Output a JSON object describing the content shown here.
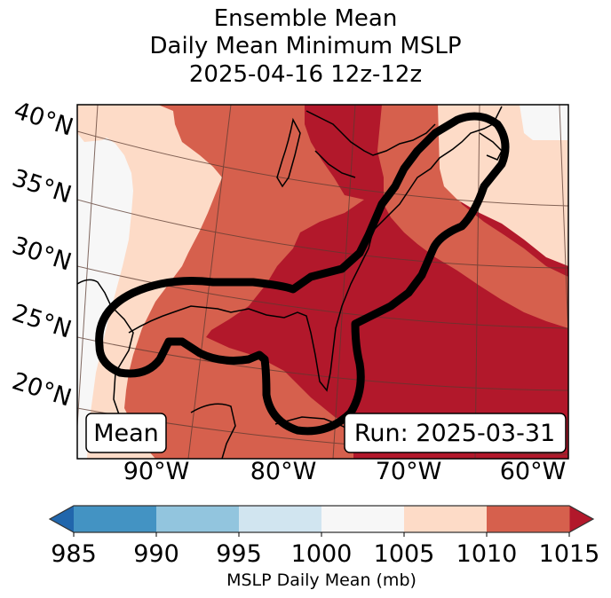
{
  "title": {
    "line1": "Ensemble Mean",
    "line2": "Daily Mean Minimum MSLP",
    "line3": "2025-04-16 12z-12z"
  },
  "map": {
    "latitude_labels": [
      "40°N",
      "35°N",
      "30°N",
      "25°N",
      "20°N"
    ],
    "longitude_labels": [
      "90°W",
      "80°W",
      "70°W",
      "60°W"
    ],
    "left_box_text": "Mean",
    "right_box_text": "Run: 2025-03-31",
    "contour_outline": "highlighted region along US East Coast and Gulf of Mexico",
    "field_colors": {
      "lt985": "#2166ac",
      "985_990": "#4393c3",
      "990_995": "#92c5de",
      "995_1000": "#d1e5f0",
      "1000_1005": "#f7f7f7",
      "1005_1010": "#fddbc7",
      "1010_1015": "#d6604d",
      "gt1015": "#b2182b"
    }
  },
  "colorbar": {
    "label": "MSLP Daily Mean (mb)",
    "ticks": [
      "985",
      "990",
      "995",
      "1000",
      "1005",
      "1010",
      "1015"
    ],
    "levels": [
      985,
      990,
      995,
      1000,
      1005,
      1010,
      1015
    ],
    "colors": [
      "#4393c3",
      "#92c5de",
      "#d1e5f0",
      "#f7f7f7",
      "#fddbc7",
      "#d6604d"
    ],
    "under_color": "#2166ac",
    "over_color": "#b2182b",
    "extend": "both"
  }
}
